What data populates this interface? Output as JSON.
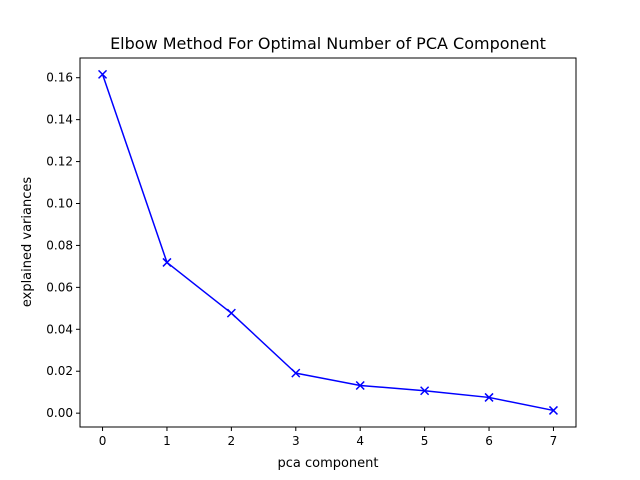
{
  "chart_data": {
    "type": "line",
    "title": "Elbow Method For Optimal Number of PCA Component",
    "xlabel": "pca component",
    "ylabel": "explained variances",
    "xlim": [
      -0.35,
      7.35
    ],
    "ylim": [
      -0.0066,
      0.1694
    ],
    "x_ticks": [
      0,
      1,
      2,
      3,
      4,
      5,
      6,
      7
    ],
    "x_tick_labels": [
      "0",
      "1",
      "2",
      "3",
      "4",
      "5",
      "6",
      "7"
    ],
    "y_ticks": [
      0.0,
      0.02,
      0.04,
      0.06,
      0.08,
      0.1,
      0.12,
      0.14,
      0.16
    ],
    "y_tick_labels": [
      "0.00",
      "0.02",
      "0.04",
      "0.06",
      "0.08",
      "0.10",
      "0.12",
      "0.14",
      "0.16"
    ],
    "grid": false,
    "legend": false,
    "series": [
      {
        "x": [
          0,
          1,
          2,
          3,
          4,
          5,
          6,
          7
        ],
        "values": [
          0.1616,
          0.0719,
          0.0477,
          0.0191,
          0.0132,
          0.0107,
          0.0075,
          0.0013
        ],
        "color": "#0000ff",
        "marker": "x"
      }
    ]
  }
}
